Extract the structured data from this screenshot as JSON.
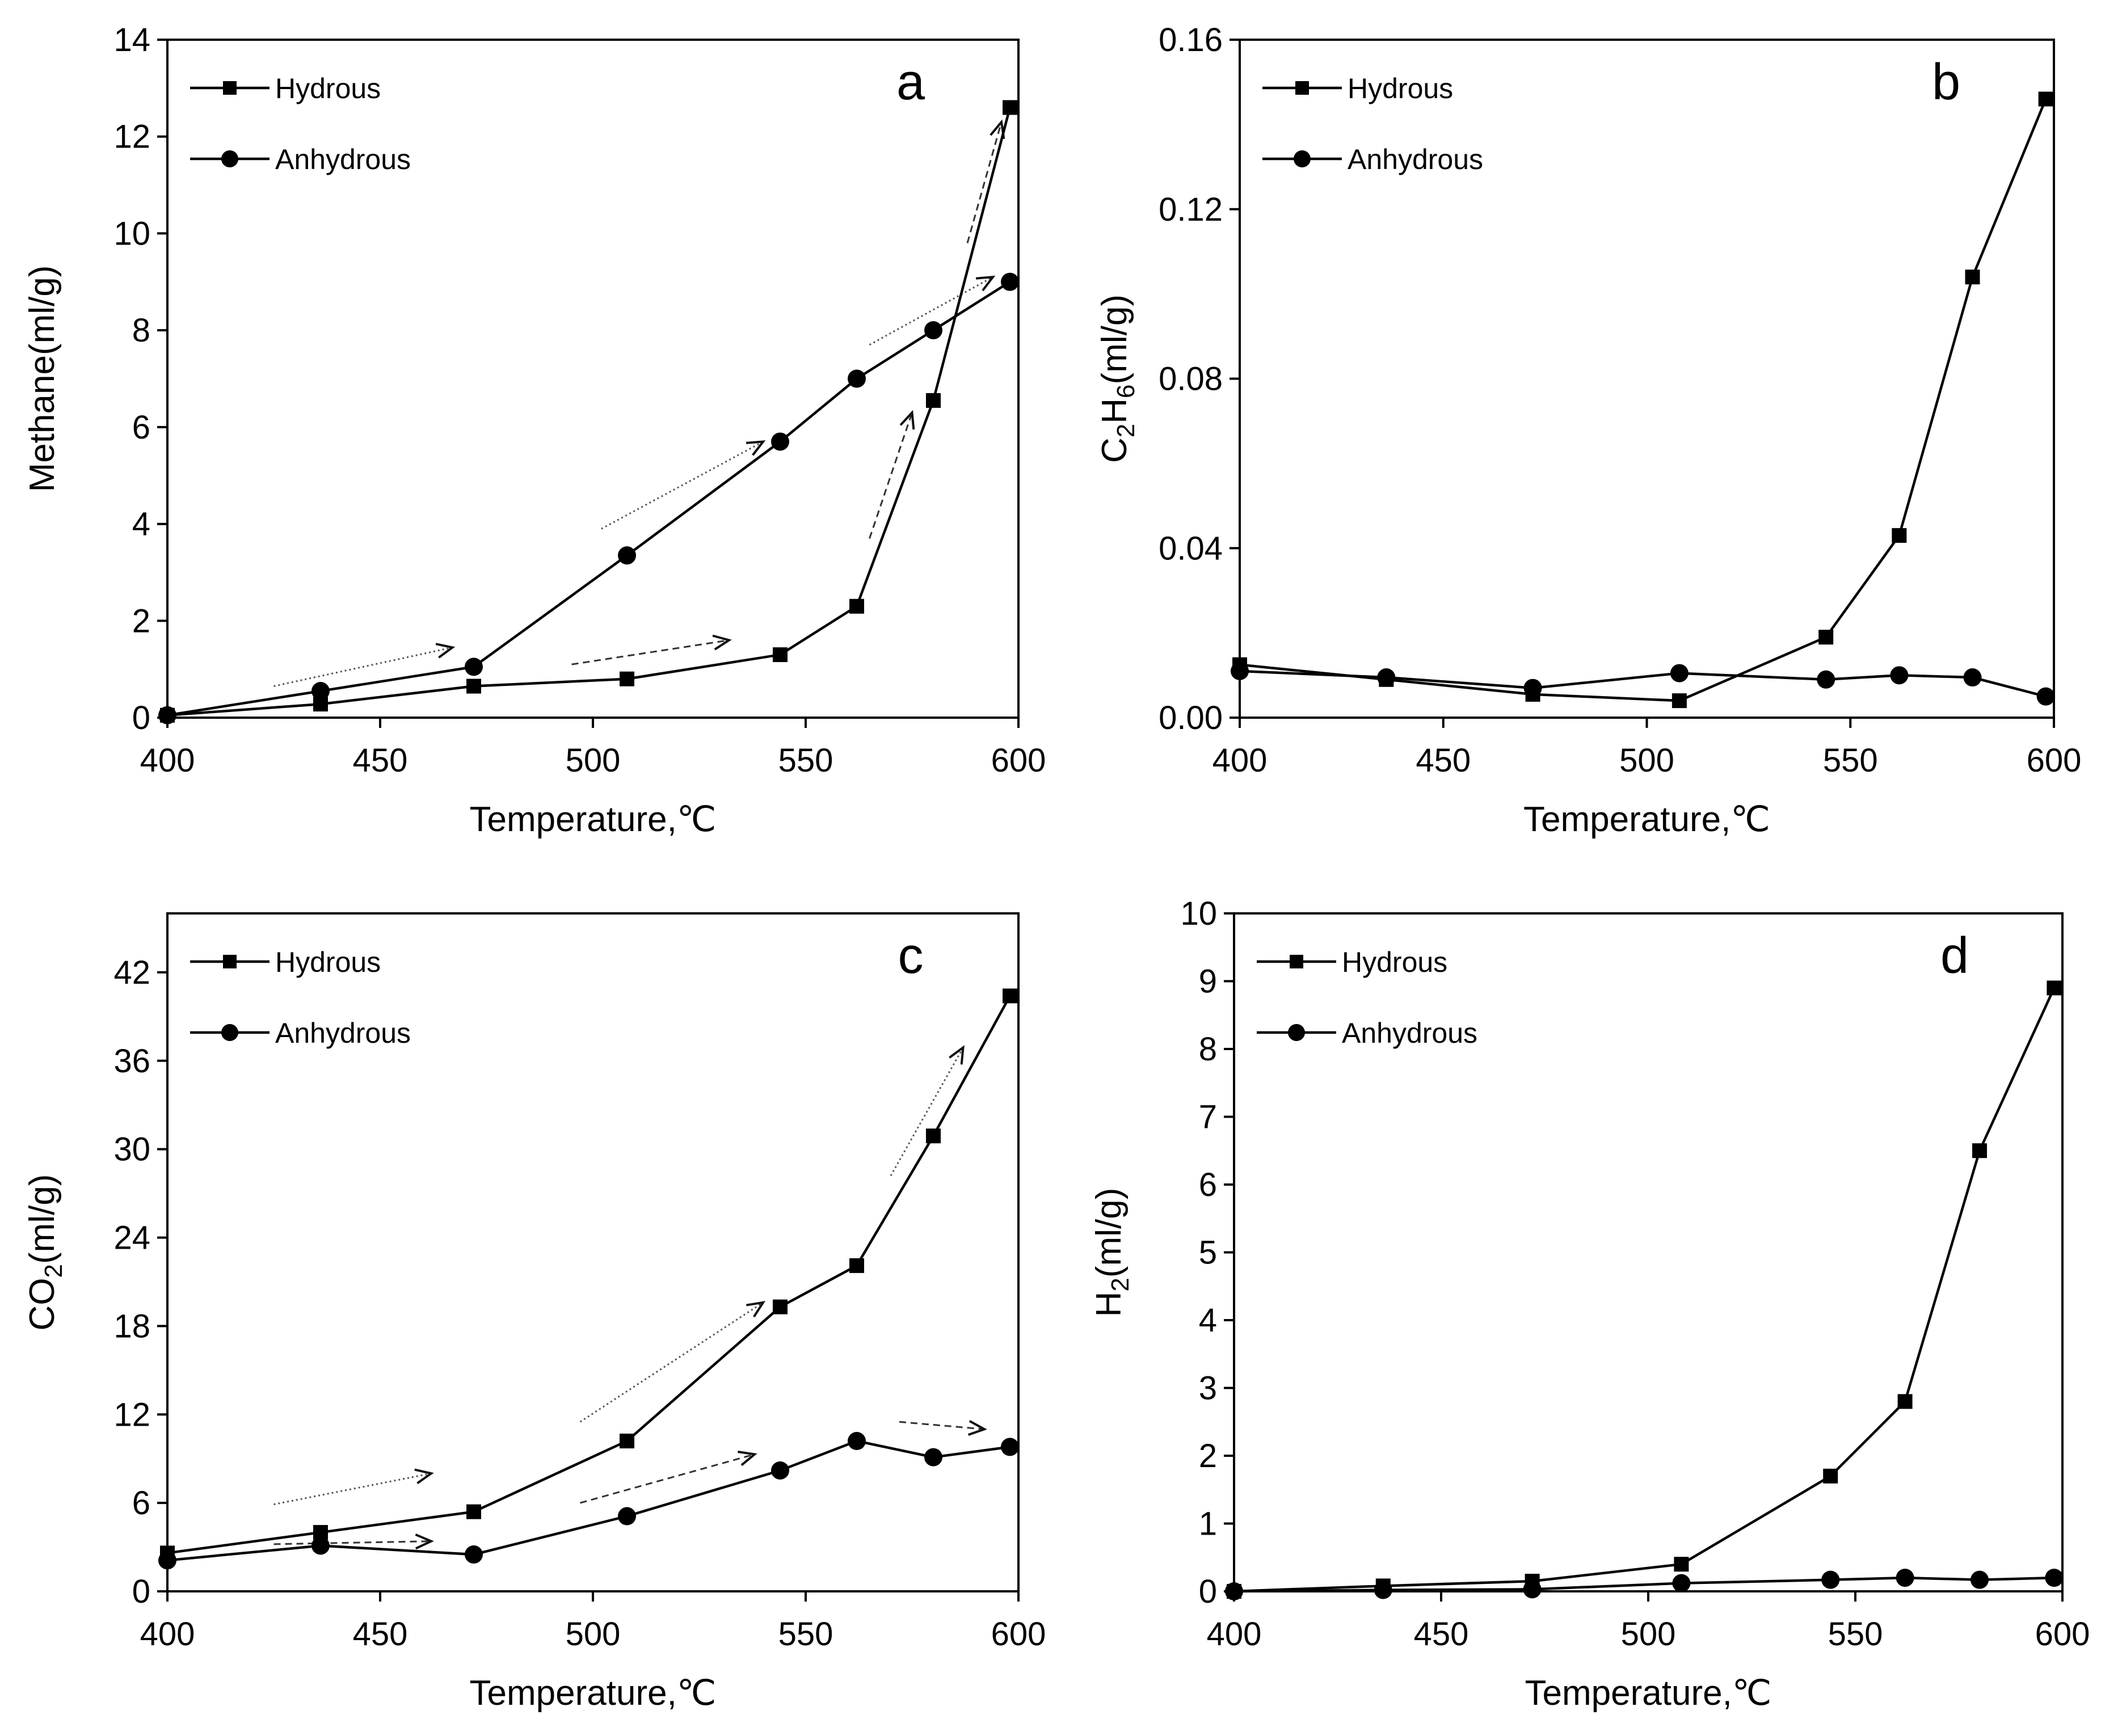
{
  "figure": {
    "background": "#ffffff",
    "ink": "#000000"
  },
  "chart_data": [
    {
      "id": "a",
      "type": "line",
      "panel_label": "a",
      "xlabel": "Temperature,℃",
      "ylabel": "Methane(ml/g)",
      "xlim": [
        400,
        600
      ],
      "ylim": [
        0,
        14
      ],
      "xticks": [
        400,
        450,
        500,
        550,
        600
      ],
      "yticks": [
        0,
        2,
        4,
        6,
        8,
        10,
        12,
        14
      ],
      "ytick_labels": [
        "0",
        "2",
        "4",
        "6",
        "8",
        "10",
        "12",
        "14"
      ],
      "legend": [
        "Hydrous",
        "Anhydrous"
      ],
      "legend_position": "top-left",
      "series": [
        {
          "name": "Hydrous",
          "marker": "square",
          "x": [
            400,
            436,
            472,
            508,
            544,
            562,
            580,
            598
          ],
          "y": [
            0.05,
            0.28,
            0.65,
            0.8,
            1.3,
            2.3,
            6.55,
            12.6
          ]
        },
        {
          "name": "Anhydrous",
          "marker": "circle",
          "x": [
            400,
            436,
            472,
            508,
            544,
            562,
            580,
            598
          ],
          "y": [
            0.05,
            0.55,
            1.05,
            3.35,
            5.7,
            7.0,
            8.0,
            9.0
          ]
        }
      ],
      "arrows": [
        {
          "style": "dotted",
          "from": [
            425,
            0.65
          ],
          "to": [
            467,
            1.45
          ]
        },
        {
          "style": "dashed",
          "from": [
            495,
            1.1
          ],
          "to": [
            532,
            1.6
          ]
        },
        {
          "style": "dotted",
          "from": [
            502,
            3.9
          ],
          "to": [
            540,
            5.7
          ]
        },
        {
          "style": "dashed",
          "from": [
            565,
            3.7
          ],
          "to": [
            575,
            6.3
          ]
        },
        {
          "style": "dotted",
          "from": [
            565,
            7.7
          ],
          "to": [
            594,
            9.1
          ]
        },
        {
          "style": "dashed",
          "from": [
            588,
            9.8
          ],
          "to": [
            596,
            12.3
          ]
        }
      ]
    },
    {
      "id": "b",
      "type": "line",
      "panel_label": "b",
      "xlabel": "Temperature,℃",
      "ylabel_parts": [
        [
          "C",
          ""
        ],
        [
          "2",
          "sub"
        ],
        [
          "H",
          ""
        ],
        [
          "6",
          "sub"
        ],
        [
          "(ml/g)",
          ""
        ]
      ],
      "xlim": [
        400,
        600
      ],
      "ylim": [
        0,
        0.16
      ],
      "xticks": [
        400,
        450,
        500,
        550,
        600
      ],
      "yticks": [
        0,
        0.04,
        0.08,
        0.12,
        0.16
      ],
      "ytick_labels": [
        "0.00",
        "0.04",
        "0.08",
        "0.12",
        "0.16"
      ],
      "legend": [
        "Hydrous",
        "Anhydrous"
      ],
      "legend_position": "top-left",
      "series": [
        {
          "name": "Hydrous",
          "marker": "square",
          "x": [
            400,
            436,
            472,
            508,
            544,
            562,
            580,
            598
          ],
          "y": [
            0.0125,
            0.009,
            0.0055,
            0.004,
            0.019,
            0.043,
            0.104,
            0.146
          ]
        },
        {
          "name": "Anhydrous",
          "marker": "circle",
          "x": [
            400,
            436,
            472,
            508,
            544,
            562,
            580,
            598
          ],
          "y": [
            0.011,
            0.0095,
            0.007,
            0.0105,
            0.009,
            0.01,
            0.0095,
            0.005
          ]
        }
      ],
      "arrows": []
    },
    {
      "id": "c",
      "type": "line",
      "panel_label": "c",
      "xlabel": "Temperature,℃",
      "ylabel_parts": [
        [
          "CO",
          ""
        ],
        [
          "2",
          "sub"
        ],
        [
          "(ml/g)",
          ""
        ]
      ],
      "xlim": [
        400,
        600
      ],
      "ylim": [
        0,
        46
      ],
      "xticks": [
        400,
        450,
        500,
        550,
        600
      ],
      "yticks": [
        0,
        6,
        12,
        18,
        24,
        30,
        36,
        42
      ],
      "ytick_labels": [
        "0",
        "6",
        "12",
        "18",
        "24",
        "30",
        "36",
        "42"
      ],
      "legend": [
        "Hydrous",
        "Anhydrous"
      ],
      "legend_position": "top-left",
      "series": [
        {
          "name": "Hydrous",
          "marker": "square",
          "x": [
            400,
            436,
            472,
            508,
            544,
            562,
            580,
            598
          ],
          "y": [
            2.6,
            4.0,
            5.4,
            10.2,
            19.3,
            22.1,
            30.9,
            40.4
          ]
        },
        {
          "name": "Anhydrous",
          "marker": "circle",
          "x": [
            400,
            436,
            472,
            508,
            544,
            562,
            580,
            598
          ],
          "y": [
            2.1,
            3.1,
            2.5,
            5.1,
            8.2,
            10.2,
            9.1,
            9.8
          ]
        }
      ],
      "arrows": [
        {
          "style": "dotted",
          "from": [
            425,
            5.9
          ],
          "to": [
            462,
            8.0
          ]
        },
        {
          "style": "dashed",
          "from": [
            425,
            3.2
          ],
          "to": [
            462,
            3.4
          ]
        },
        {
          "style": "dotted",
          "from": [
            497,
            11.5
          ],
          "to": [
            540,
            19.6
          ]
        },
        {
          "style": "dashed",
          "from": [
            497,
            6.0
          ],
          "to": [
            538,
            9.3
          ]
        },
        {
          "style": "dotted",
          "from": [
            570,
            28.2
          ],
          "to": [
            587,
            36.9
          ]
        },
        {
          "style": "dashed",
          "from": [
            572,
            11.5
          ],
          "to": [
            592,
            11.0
          ]
        }
      ]
    },
    {
      "id": "d",
      "type": "line",
      "panel_label": "d",
      "xlabel": "Temperature,℃",
      "ylabel_parts": [
        [
          "H",
          ""
        ],
        [
          "2",
          "sub"
        ],
        [
          "(ml/g)",
          ""
        ]
      ],
      "xlim": [
        400,
        600
      ],
      "ylim": [
        0,
        10
      ],
      "xticks": [
        400,
        450,
        500,
        550,
        600
      ],
      "yticks": [
        0,
        1,
        2,
        3,
        4,
        5,
        6,
        7,
        8,
        9,
        10
      ],
      "ytick_labels": [
        "0",
        "1",
        "2",
        "3",
        "4",
        "5",
        "6",
        "7",
        "8",
        "9",
        "10"
      ],
      "legend": [
        "Hydrous",
        "Anhydrous"
      ],
      "legend_position": "top-left",
      "series": [
        {
          "name": "Hydrous",
          "marker": "square",
          "x": [
            400,
            436,
            472,
            508,
            544,
            562,
            580,
            598
          ],
          "y": [
            0.0,
            0.08,
            0.15,
            0.4,
            1.7,
            2.8,
            6.5,
            8.9
          ]
        },
        {
          "name": "Anhydrous",
          "marker": "circle",
          "x": [
            400,
            436,
            472,
            508,
            544,
            562,
            580,
            598
          ],
          "y": [
            0.0,
            0.02,
            0.03,
            0.12,
            0.17,
            0.2,
            0.17,
            0.2
          ]
        }
      ],
      "arrows": []
    }
  ]
}
